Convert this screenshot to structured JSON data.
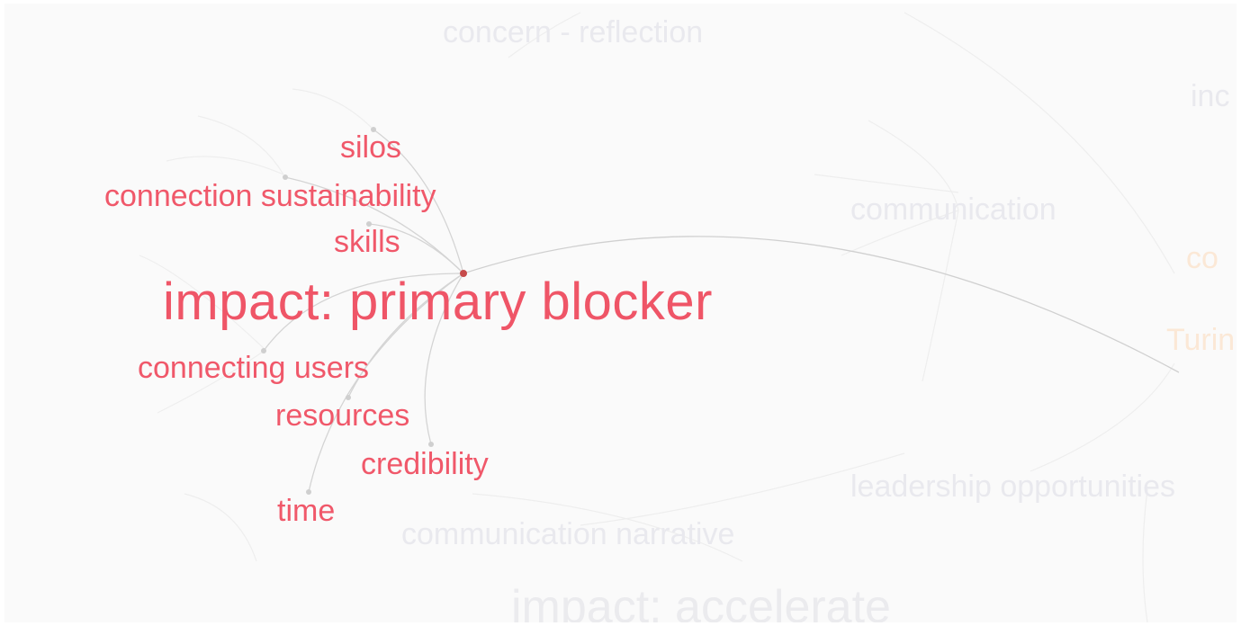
{
  "graph": {
    "focus_node": "impact: primary blocker",
    "highlighted_nodes": [
      "silos",
      "connection sustainability",
      "skills",
      "connecting users",
      "resources",
      "credibility",
      "time"
    ],
    "background_nodes": [
      "concern - reflection",
      "communication",
      "leadership opportunities",
      "communication narrative",
      "impact: accelerate",
      "inc",
      "co",
      "Turin"
    ],
    "colors": {
      "highlight": "#f0586a",
      "background_label": "#e9e9ee",
      "edge": "#cfcfcf",
      "node_dot": "#c64a4a",
      "orange_faded": "#fbe8d6"
    }
  }
}
